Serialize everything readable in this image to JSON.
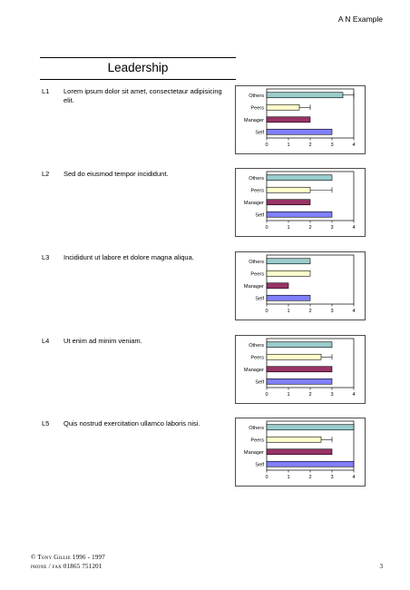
{
  "header": {
    "right_text": "A N Example"
  },
  "section": {
    "title": "Leadership"
  },
  "items": [
    {
      "code": "L1",
      "text": "Lorem ipsum dolor sit amet, consectetaur adipisicing elit."
    },
    {
      "code": "L2",
      "text": "Sed do eiusmod tempor incididunt."
    },
    {
      "code": "L3",
      "text": "Incididunt ut labore et dolore magna aliqua."
    },
    {
      "code": "L4",
      "text": "Ut enim ad minim veniam."
    },
    {
      "code": "L5",
      "text": "Quis nostrud exercitation ullamco laboris nisi."
    }
  ],
  "colors": {
    "Others": "#99cccc",
    "Peers": "#ffffcc",
    "Manager": "#993366",
    "Self": "#8080ff"
  },
  "chart_data": [
    {
      "type": "bar",
      "orientation": "horizontal",
      "categories": [
        "Others",
        "Peers",
        "Manager",
        "Self"
      ],
      "values": [
        3.5,
        1.5,
        2,
        3
      ],
      "error_high": [
        4,
        2,
        null,
        null
      ],
      "xlim": [
        0,
        4
      ],
      "xticks": [
        "0",
        "1",
        "2",
        "3",
        "4"
      ],
      "grid": false,
      "title": "",
      "xlabel": "",
      "ylabel": ""
    },
    {
      "type": "bar",
      "orientation": "horizontal",
      "categories": [
        "Others",
        "Peers",
        "Manager",
        "Self"
      ],
      "values": [
        3,
        2,
        2,
        3
      ],
      "error_high": [
        null,
        3,
        null,
        null
      ],
      "xlim": [
        0,
        4
      ],
      "xticks": [
        "0",
        "1",
        "2",
        "3",
        "4"
      ],
      "grid": false,
      "title": "",
      "xlabel": "",
      "ylabel": ""
    },
    {
      "type": "bar",
      "orientation": "horizontal",
      "categories": [
        "Others",
        "Peers",
        "Manager",
        "Self"
      ],
      "values": [
        2,
        2,
        1,
        2
      ],
      "error_high": [
        null,
        null,
        null,
        null
      ],
      "xlim": [
        0,
        4
      ],
      "xticks": [
        "0",
        "1",
        "2",
        "3",
        "4"
      ],
      "grid": false,
      "title": "",
      "xlabel": "",
      "ylabel": ""
    },
    {
      "type": "bar",
      "orientation": "horizontal",
      "categories": [
        "Others",
        "Peers",
        "Manager",
        "Self"
      ],
      "values": [
        3,
        2.5,
        3,
        3
      ],
      "error_high": [
        null,
        3,
        null,
        null
      ],
      "xlim": [
        0,
        4
      ],
      "xticks": [
        "0",
        "1",
        "2",
        "3",
        "4"
      ],
      "grid": false,
      "title": "",
      "xlabel": "",
      "ylabel": ""
    },
    {
      "type": "bar",
      "orientation": "horizontal",
      "categories": [
        "Others",
        "Peers",
        "Manager",
        "Self"
      ],
      "values": [
        4,
        2.5,
        3,
        4
      ],
      "error_high": [
        null,
        3,
        null,
        null
      ],
      "xlim": [
        0,
        4
      ],
      "xticks": [
        "0",
        "1",
        "2",
        "3",
        "4"
      ],
      "grid": false,
      "title": "",
      "xlabel": "",
      "ylabel": ""
    }
  ],
  "footer": {
    "copyright": "© Tony Gillie 1996 - 1997",
    "phone": "phone / fax 01865 751201",
    "page_number": "3"
  }
}
